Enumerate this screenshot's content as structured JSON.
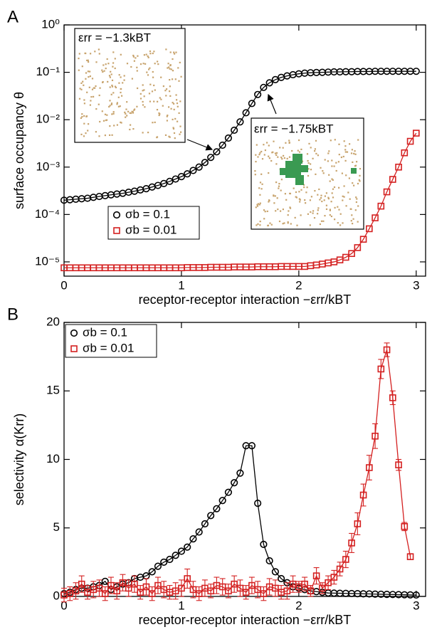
{
  "chart_data": [
    {
      "type": "line",
      "panel_label": "A",
      "x_label": "receptor-receptor interaction −εrr/kBT",
      "y_label": "surface occupancy θ",
      "log_y": true,
      "legend": "lower left",
      "xlim": [
        0,
        3.08
      ],
      "xticks": [
        0,
        1,
        2,
        3
      ],
      "ylim": [
        5e-06,
        1
      ],
      "yticks": [
        {
          "value": 1,
          "label": "10⁰"
        },
        {
          "value": 0.1,
          "label": "10⁻¹"
        },
        {
          "value": 0.01,
          "label": "10⁻²"
        },
        {
          "value": 0.001,
          "label": "10⁻³"
        },
        {
          "value": 0.0001,
          "label": "10⁻⁴"
        },
        {
          "value": 1e-05,
          "label": "10⁻⁵"
        }
      ],
      "annotations": [
        "εrr = −1.3kBT",
        "εrr = −1.75kBT"
      ],
      "x": [
        0,
        0.05,
        0.1,
        0.15,
        0.2,
        0.25,
        0.3,
        0.35,
        0.4,
        0.45,
        0.5,
        0.55,
        0.6,
        0.65,
        0.7,
        0.75,
        0.8,
        0.85,
        0.9,
        0.95,
        1,
        1.05,
        1.1,
        1.15,
        1.2,
        1.25,
        1.3,
        1.35,
        1.4,
        1.45,
        1.5,
        1.55,
        1.6,
        1.65,
        1.7,
        1.75,
        1.8,
        1.85,
        1.9,
        1.95,
        2,
        2.05,
        2.1,
        2.15,
        2.2,
        2.25,
        2.3,
        2.35,
        2.4,
        2.45,
        2.5,
        2.55,
        2.6,
        2.65,
        2.7,
        2.75,
        2.8,
        2.85,
        2.9,
        2.95,
        3
      ],
      "series": [
        {
          "name": "σb = 0.1",
          "color": "#000000",
          "marker": "circle",
          "values": [
            0.0002,
            0.000205,
            0.00021,
            0.000215,
            0.00022,
            0.00023,
            0.00024,
            0.00025,
            0.00026,
            0.00027,
            0.00028,
            0.000295,
            0.00031,
            0.00033,
            0.00035,
            0.00038,
            0.00041,
            0.00045,
            0.0005,
            0.00056,
            0.00063,
            0.00072,
            0.00085,
            0.001,
            0.00125,
            0.0016,
            0.0021,
            0.0029,
            0.0041,
            0.006,
            0.009,
            0.014,
            0.022,
            0.034,
            0.048,
            0.06,
            0.07,
            0.078,
            0.084,
            0.089,
            0.093,
            0.096,
            0.098,
            0.099,
            0.1,
            0.101,
            0.102,
            0.102,
            0.103,
            0.103,
            0.104,
            0.104,
            0.104,
            0.105,
            0.105,
            0.105,
            0.105,
            0.105,
            0.105,
            0.105,
            0.105
          ]
        },
        {
          "name": "σb = 0.01",
          "color": "#d42020",
          "marker": "square",
          "values": [
            7.5e-06,
            7.5e-06,
            7.5e-06,
            7.5e-06,
            7.5e-06,
            7.5e-06,
            7.5e-06,
            7.5e-06,
            7.5e-06,
            7.5e-06,
            7.5e-06,
            7.5e-06,
            7.5e-06,
            7.5e-06,
            7.5e-06,
            7.5e-06,
            7.5e-06,
            7.5e-06,
            7.5e-06,
            7.5e-06,
            7.5e-06,
            7.6e-06,
            7.6e-06,
            7.6e-06,
            7.6e-06,
            7.7e-06,
            7.7e-06,
            7.7e-06,
            7.7e-06,
            7.8e-06,
            7.8e-06,
            7.8e-06,
            7.8e-06,
            7.9e-06,
            7.9e-06,
            7.9e-06,
            7.9e-06,
            8e-06,
            8e-06,
            8e-06,
            8e-06,
            8e-06,
            8.3e-06,
            8.6e-06,
            9e-06,
            9.5e-06,
            1e-05,
            1.1e-05,
            1.25e-05,
            1.5e-05,
            2e-05,
            3e-05,
            5e-05,
            8.5e-05,
            0.00015,
            0.0003,
            0.00055,
            0.001,
            0.002,
            0.0035,
            0.0052
          ]
        }
      ]
    },
    {
      "type": "line",
      "panel_label": "B",
      "x_label": "receptor-receptor interaction −εrr/kBT",
      "y_label": "selectivity α(Krr)",
      "log_y": false,
      "legend": "upper left",
      "xlim": [
        0,
        3.08
      ],
      "xticks": [
        0,
        1,
        2,
        3
      ],
      "ylim": [
        0,
        20
      ],
      "yticks": [
        0,
        5,
        10,
        15,
        20
      ],
      "x": [
        0,
        0.05,
        0.1,
        0.15,
        0.2,
        0.25,
        0.3,
        0.35,
        0.4,
        0.45,
        0.5,
        0.55,
        0.6,
        0.65,
        0.7,
        0.75,
        0.8,
        0.85,
        0.9,
        0.95,
        1,
        1.05,
        1.1,
        1.15,
        1.2,
        1.25,
        1.3,
        1.35,
        1.4,
        1.45,
        1.5,
        1.55,
        1.6,
        1.65,
        1.7,
        1.75,
        1.8,
        1.85,
        1.9,
        1.95,
        2,
        2.05,
        2.1,
        2.15,
        2.2,
        2.25,
        2.3,
        2.35,
        2.4,
        2.45,
        2.5,
        2.55,
        2.6,
        2.65,
        2.7,
        2.75,
        2.8,
        2.85,
        2.9,
        2.95,
        3
      ],
      "series": [
        {
          "name": "σb = 0.1",
          "color": "#000000",
          "marker": "circle",
          "values": [
            0.2,
            0.3,
            0.5,
            0.6,
            0.6,
            0.7,
            0.8,
            1.1,
            0.5,
            0.7,
            0.9,
            1.0,
            1.3,
            1.4,
            1.5,
            1.8,
            2.2,
            2.5,
            2.7,
            3.0,
            3.3,
            3.6,
            4.2,
            4.7,
            5.3,
            5.9,
            6.4,
            7.0,
            7.6,
            8.3,
            9.0,
            11.0,
            11.0,
            6.8,
            3.8,
            2.6,
            1.8,
            1.3,
            1.0,
            0.7,
            0.6,
            0.5,
            0.4,
            0.35,
            0.3,
            0.25,
            0.24,
            0.23,
            0.22,
            0.21,
            0.2,
            0.19,
            0.18,
            0.17,
            0.16,
            0.15,
            0.14,
            0.13,
            0.12,
            0.11,
            0.1
          ]
        },
        {
          "name": "σb = 0.01",
          "color": "#d42020",
          "marker": "square",
          "x": [
            0,
            0.05,
            0.1,
            0.15,
            0.2,
            0.25,
            0.3,
            0.35,
            0.4,
            0.45,
            0.5,
            0.55,
            0.6,
            0.65,
            0.7,
            0.75,
            0.8,
            0.85,
            0.9,
            0.95,
            1,
            1.05,
            1.1,
            1.15,
            1.2,
            1.25,
            1.3,
            1.35,
            1.4,
            1.45,
            1.5,
            1.55,
            1.6,
            1.65,
            1.7,
            1.75,
            1.8,
            1.85,
            1.9,
            1.95,
            2,
            2.05,
            2.1,
            2.15,
            2.2,
            2.25,
            2.3,
            2.35,
            2.4,
            2.45,
            2.5,
            2.55,
            2.6,
            2.65,
            2.7,
            2.75,
            2.8,
            2.85,
            2.9,
            2.95
          ],
          "values": [
            0.1,
            0.2,
            0.4,
            0.9,
            0.3,
            0.5,
            0.6,
            0.2,
            0.8,
            0.4,
            1.0,
            0.6,
            0.9,
            0.3,
            0.7,
            0.2,
            0.8,
            0.5,
            0.3,
            0.4,
            0.6,
            1.3,
            0.5,
            0.2,
            0.6,
            0.4,
            0.8,
            0.7,
            0.4,
            0.9,
            0.6,
            0.3,
            0.8,
            0.5,
            0.2,
            0.7,
            0.6,
            0.3,
            0.4,
            0.9,
            0.7,
            0.9,
            0.4,
            1.5,
            0.6,
            1.0,
            1.4,
            2.0,
            2.7,
            3.9,
            5.3,
            7.4,
            9.4,
            11.7,
            16.6,
            18.0,
            14.5,
            9.6,
            5.1,
            2.9
          ],
          "errors": [
            0.5,
            0.5,
            0.6,
            0.6,
            0.5,
            0.6,
            0.6,
            0.5,
            0.6,
            0.6,
            0.6,
            0.6,
            0.6,
            0.5,
            0.6,
            0.5,
            0.6,
            0.6,
            0.5,
            0.6,
            0.6,
            0.7,
            0.6,
            0.5,
            0.6,
            0.5,
            0.6,
            0.6,
            0.5,
            0.6,
            0.6,
            0.5,
            0.6,
            0.6,
            0.5,
            0.6,
            0.6,
            0.5,
            0.6,
            0.6,
            0.4,
            0.5,
            0.4,
            0.6,
            0.4,
            0.5,
            0.5,
            0.5,
            0.6,
            0.7,
            0.8,
            0.8,
            0.9,
            0.9,
            0.7,
            0.5,
            0.5,
            0.4,
            0.3,
            0.2
          ]
        }
      ]
    }
  ]
}
